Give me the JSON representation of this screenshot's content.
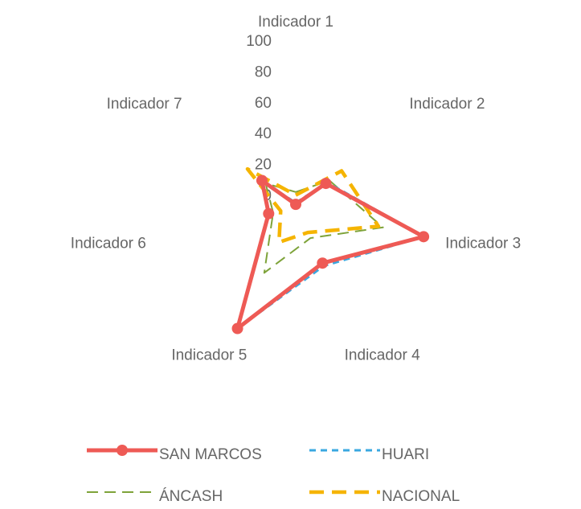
{
  "chart_data": {
    "type": "radar",
    "categories": [
      "Indicador 1",
      "Indicador 2",
      "Indicador 3",
      "Indicador 4",
      "Indicador 5",
      "Indicador 6",
      "Indicador 7"
    ],
    "series": [
      {
        "name": "SAN MARCOS",
        "color": "#ee5a55",
        "values": [
          2,
          25,
          85,
          40,
          87,
          18,
          28
        ]
      },
      {
        "name": "HUARI",
        "color": "#3aa8e0",
        "values": [
          3,
          26,
          85,
          42,
          87,
          18,
          27
        ]
      },
      {
        "name": "ÁNCASH",
        "color": "#7ea33a",
        "values": [
          10,
          28,
          58,
          22,
          47,
          15,
          25
        ]
      },
      {
        "name": "NACIONAL",
        "color": "#f5b400",
        "values": [
          8,
          38,
          55,
          18,
          25,
          10,
          40
        ]
      }
    ],
    "ylim": [
      0,
      100
    ],
    "yticks": [
      0,
      20,
      40,
      60,
      80,
      100
    ],
    "legend": "bottom"
  }
}
